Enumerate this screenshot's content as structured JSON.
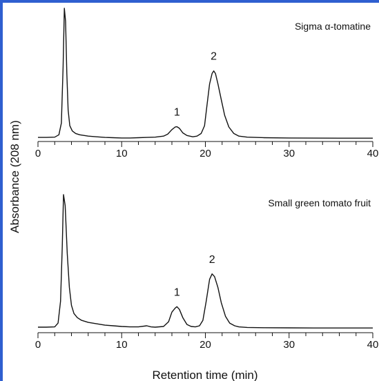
{
  "colors": {
    "frame": "#2f5fd0",
    "trace": "#111111"
  },
  "ylabel": "Absorbance (208 nm)",
  "xlabel": "Retention time (min)",
  "chart_data": [
    {
      "type": "line",
      "title": "Sigma α-tomatine",
      "xlabel": "Retention time (min)",
      "ylabel": "Absorbance (208 nm)",
      "xlim": [
        0,
        40
      ],
      "xticks": [
        0,
        10,
        20,
        30,
        40
      ],
      "xtick_labels": [
        "0",
        "10",
        "20",
        "30",
        "40"
      ],
      "y_units": "relative absorbance (peak-normalized)",
      "ylim": [
        0,
        1.0
      ],
      "annotations": [
        {
          "text": "1",
          "x": 16.6
        },
        {
          "text": "2",
          "x": 21.0
        }
      ],
      "series": [
        {
          "x": [
            0,
            1.0,
            2.0,
            2.5,
            2.8,
            3.0,
            3.15,
            3.3,
            3.45,
            3.6,
            3.8,
            4.1,
            4.5,
            5.0,
            6.0,
            7.0,
            8.0,
            9.0,
            10.0,
            11.0,
            12.0,
            13.0,
            14.0,
            15.0,
            15.5,
            16.0,
            16.4,
            16.6,
            16.9,
            17.3,
            17.8,
            18.5,
            19.0,
            19.5,
            19.9,
            20.2,
            20.5,
            20.8,
            21.0,
            21.2,
            21.5,
            21.9,
            22.3,
            22.8,
            23.4,
            24.0,
            25.0,
            27.0,
            30.0,
            33.0,
            36.0,
            40.0
          ],
          "y": [
            0.01,
            0.01,
            0.012,
            0.03,
            0.12,
            0.55,
            1.0,
            0.9,
            0.5,
            0.22,
            0.1,
            0.06,
            0.04,
            0.03,
            0.02,
            0.015,
            0.01,
            0.008,
            0.006,
            0.006,
            0.008,
            0.01,
            0.012,
            0.02,
            0.035,
            0.07,
            0.09,
            0.092,
            0.08,
            0.045,
            0.025,
            0.015,
            0.02,
            0.04,
            0.1,
            0.26,
            0.42,
            0.5,
            0.52,
            0.5,
            0.42,
            0.3,
            0.18,
            0.09,
            0.04,
            0.02,
            0.012,
            0.008,
            0.006,
            0.005,
            0.004,
            0.004
          ]
        }
      ]
    },
    {
      "type": "line",
      "title": "Small green tomato fruit",
      "xlabel": "Retention time (min)",
      "ylabel": "Absorbance (208 nm)",
      "xlim": [
        0,
        40
      ],
      "xticks": [
        0,
        10,
        20,
        30,
        40
      ],
      "xtick_labels": [
        "0",
        "10",
        "20",
        "30",
        "40"
      ],
      "y_units": "relative absorbance (peak-normalized)",
      "ylim": [
        0,
        1.0
      ],
      "annotations": [
        {
          "text": "1",
          "x": 16.6
        },
        {
          "text": "2",
          "x": 20.8
        }
      ],
      "series": [
        {
          "x": [
            0,
            1.0,
            2.0,
            2.4,
            2.7,
            2.9,
            3.05,
            3.25,
            3.5,
            3.75,
            4.0,
            4.3,
            4.7,
            5.2,
            6.0,
            7.0,
            8.0,
            9.0,
            10.0,
            11.0,
            12.0,
            13.0,
            13.5,
            14.0,
            15.0,
            15.6,
            16.0,
            16.4,
            16.6,
            16.9,
            17.3,
            17.8,
            18.3,
            18.8,
            19.3,
            19.7,
            20.1,
            20.5,
            20.8,
            21.1,
            21.5,
            21.9,
            22.4,
            22.9,
            23.5,
            24.0,
            25.0,
            27.0,
            30.0,
            33.0,
            36.0,
            40.0
          ],
          "y": [
            0.01,
            0.01,
            0.012,
            0.04,
            0.2,
            0.6,
            0.98,
            0.9,
            0.55,
            0.3,
            0.17,
            0.11,
            0.08,
            0.06,
            0.045,
            0.035,
            0.025,
            0.02,
            0.015,
            0.012,
            0.012,
            0.02,
            0.012,
            0.01,
            0.015,
            0.05,
            0.12,
            0.15,
            0.16,
            0.14,
            0.08,
            0.03,
            0.015,
            0.012,
            0.02,
            0.06,
            0.2,
            0.36,
            0.4,
            0.38,
            0.3,
            0.19,
            0.09,
            0.04,
            0.02,
            0.012,
            0.008,
            0.006,
            0.005,
            0.004,
            0.004,
            0.004
          ]
        }
      ]
    }
  ]
}
